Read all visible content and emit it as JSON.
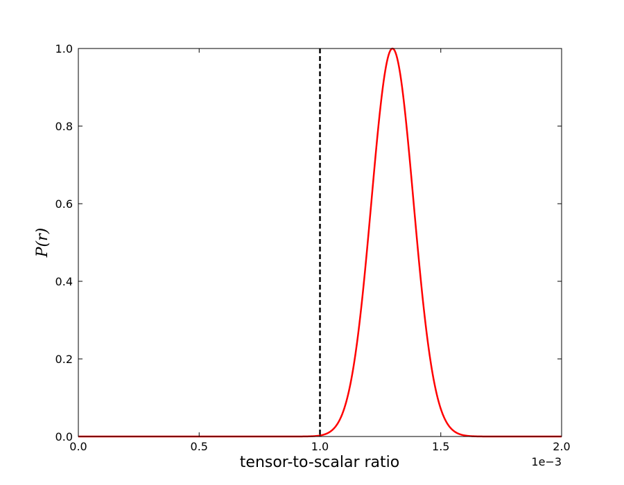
{
  "chart_data": {
    "type": "line",
    "title": "",
    "xlabel": "tensor-to-scalar ratio",
    "ylabel": "P(r)",
    "x_offset_label": "1e−3",
    "xlim": [
      0.0,
      2.0
    ],
    "ylim": [
      0.0,
      1.0
    ],
    "x_ticks": [
      0.0,
      0.5,
      1.0,
      1.5,
      2.0
    ],
    "x_tick_labels": [
      "0.0",
      "0.5",
      "1.0",
      "1.5",
      "2.0"
    ],
    "y_ticks": [
      0.0,
      0.2,
      0.4,
      0.6,
      0.8,
      1.0
    ],
    "y_tick_labels": [
      "0.0",
      "0.2",
      "0.4",
      "0.6",
      "0.8",
      "1.0"
    ],
    "grid": false,
    "series": [
      {
        "color": "#ff0000",
        "style": "solid",
        "x": [
          0.0,
          0.9,
          1.0,
          1.05,
          1.1,
          1.15,
          1.2,
          1.25,
          1.3,
          1.35,
          1.4,
          1.45,
          1.5,
          1.55,
          1.6,
          1.7,
          2.0
        ],
        "y": [
          0.0,
          0.0,
          0.01,
          0.03,
          0.09,
          0.24,
          0.48,
          0.78,
          1.0,
          0.83,
          0.5,
          0.23,
          0.09,
          0.03,
          0.01,
          0.0,
          0.0
        ]
      }
    ],
    "reference_lines": [
      {
        "orientation": "vertical",
        "x": 1.0,
        "color": "#000000",
        "style": "dashed"
      }
    ]
  }
}
